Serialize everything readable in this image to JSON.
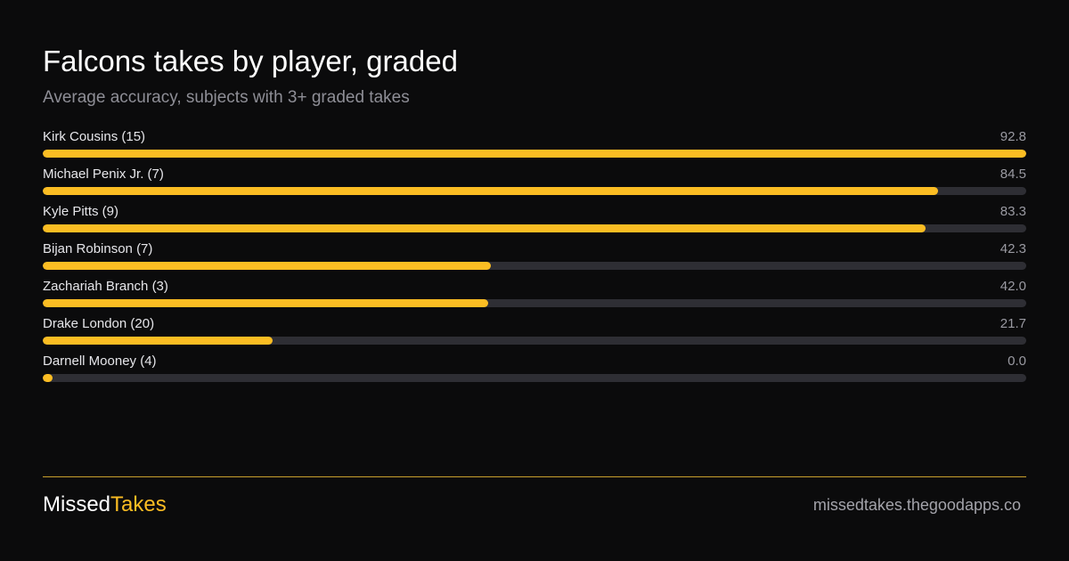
{
  "header": {
    "title": "Falcons takes by player, graded",
    "subtitle": "Average accuracy, subjects with 3+ graded takes"
  },
  "colors": {
    "background": "#0b0b0c",
    "bar_fill": "#fbbd23",
    "bar_track": "#2e2e34",
    "accent": "#fbbd23"
  },
  "chart_data": {
    "type": "bar",
    "orientation": "horizontal",
    "title": "Falcons takes by player, graded",
    "subtitle": "Average accuracy, subjects with 3+ graded takes",
    "categories": [
      "Kirk Cousins (15)",
      "Michael Penix Jr. (7)",
      "Kyle Pitts (9)",
      "Bijan Robinson (7)",
      "Zachariah Branch (3)",
      "Drake London (20)",
      "Darnell Mooney (4)"
    ],
    "values": [
      92.8,
      84.5,
      83.3,
      42.3,
      42.0,
      21.7,
      0.0
    ],
    "value_labels": [
      "92.8",
      "84.5",
      "83.3",
      "42.3",
      "42.0",
      "21.7",
      "0.0"
    ],
    "xlim": [
      0,
      92.8
    ],
    "grid": false
  },
  "footer": {
    "brand_first": "Missed",
    "brand_second": "Takes",
    "site": "missedtakes.thegoodapps.co"
  }
}
